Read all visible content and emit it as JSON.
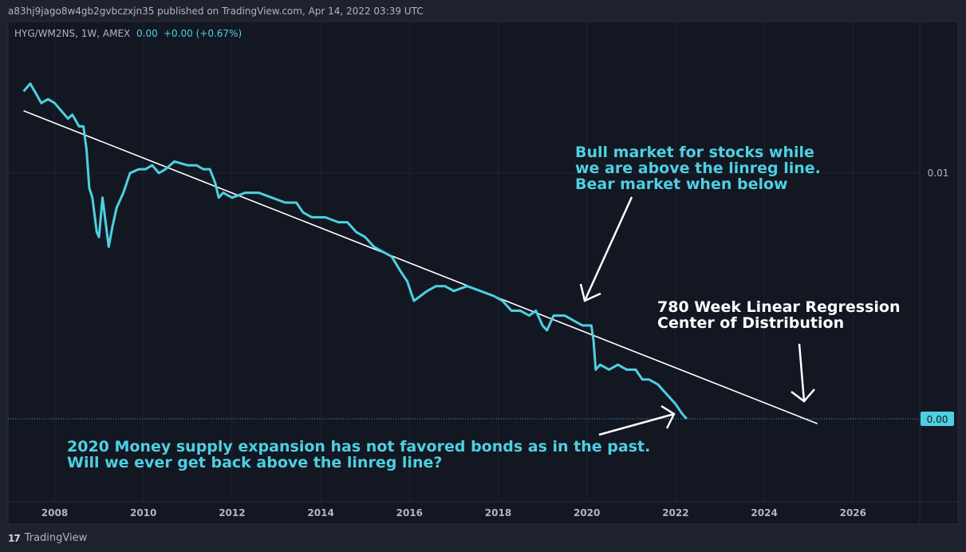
{
  "header": {
    "published": "a83hj9jago8w4gb2gvbczxjn35 published on TradingView.com, Apr 14, 2022 03:39 UTC"
  },
  "legend": {
    "symbol": "HYG/WM2NS, 1W, AMEX",
    "value": "0.00",
    "change": "+0.00 (+0.67%)"
  },
  "footer": {
    "brand": "TradingView",
    "logo": "17"
  },
  "colors": {
    "background": "#131722",
    "frame": "#1e222d",
    "series": "#4dd0e1",
    "regression": "#ffffff",
    "grid": "#1f2330",
    "price_tag": "#4dd0e1"
  },
  "annotations": {
    "bull_line1": "Bull market for stocks while",
    "bull_line2": "we are above the linreg line.",
    "bull_line3": "Bear market when below",
    "reg_line1": "780 Week Linear Regression",
    "reg_line2": "Center of Distribution",
    "money_line1": "2020 Money supply expansion has not favored bonds as in the past.",
    "money_line2": "Will we ever get back above the linreg line?"
  },
  "chart_data": {
    "type": "line",
    "x_ticks": [
      "2008",
      "2010",
      "2012",
      "2014",
      "2016",
      "2018",
      "2020",
      "2022",
      "2024",
      "2026"
    ],
    "y_ticks": [
      "0.01",
      "0.00"
    ],
    "last_value_label": "0.00",
    "xlim": [
      2007.0,
      2027.5
    ],
    "grid": true,
    "series": [
      {
        "values": [
          [
            2007.3,
            0.0121
          ],
          [
            2007.45,
            0.0123
          ],
          [
            2007.55,
            0.0121
          ],
          [
            2007.7,
            0.0118
          ],
          [
            2007.85,
            0.0119
          ],
          [
            2008.0,
            0.0118
          ],
          [
            2008.15,
            0.0116
          ],
          [
            2008.3,
            0.0114
          ],
          [
            2008.4,
            0.0115
          ],
          [
            2008.55,
            0.0112
          ],
          [
            2008.65,
            0.0112
          ],
          [
            2008.72,
            0.0106
          ],
          [
            2008.78,
            0.0097
          ],
          [
            2008.85,
            0.0095
          ],
          [
            2008.95,
            0.0088
          ],
          [
            2009.0,
            0.0087
          ],
          [
            2009.08,
            0.0095
          ],
          [
            2009.15,
            0.009
          ],
          [
            2009.22,
            0.0085
          ],
          [
            2009.3,
            0.0089
          ],
          [
            2009.4,
            0.0093
          ],
          [
            2009.55,
            0.0096
          ],
          [
            2009.7,
            0.01
          ],
          [
            2009.9,
            0.0101
          ],
          [
            2010.05,
            0.0101
          ],
          [
            2010.2,
            0.0102
          ],
          [
            2010.35,
            0.01
          ],
          [
            2010.5,
            0.0101
          ],
          [
            2010.7,
            0.0103
          ],
          [
            2011.0,
            0.0102
          ],
          [
            2011.2,
            0.0102
          ],
          [
            2011.35,
            0.0101
          ],
          [
            2011.5,
            0.0101
          ],
          [
            2011.62,
            0.0098
          ],
          [
            2011.7,
            0.0095
          ],
          [
            2011.8,
            0.0096
          ],
          [
            2012.0,
            0.0095
          ],
          [
            2012.3,
            0.0096
          ],
          [
            2012.6,
            0.0096
          ],
          [
            2012.9,
            0.0095
          ],
          [
            2013.2,
            0.0094
          ],
          [
            2013.45,
            0.0094
          ],
          [
            2013.6,
            0.0092
          ],
          [
            2013.8,
            0.0091
          ],
          [
            2014.1,
            0.0091
          ],
          [
            2014.4,
            0.009
          ],
          [
            2014.6,
            0.009
          ],
          [
            2014.8,
            0.0088
          ],
          [
            2015.0,
            0.0087
          ],
          [
            2015.2,
            0.0085
          ],
          [
            2015.4,
            0.0084
          ],
          [
            2015.6,
            0.0083
          ],
          [
            2015.8,
            0.008
          ],
          [
            2015.95,
            0.0078
          ],
          [
            2016.1,
            0.0074
          ],
          [
            2016.25,
            0.0075
          ],
          [
            2016.4,
            0.0076
          ],
          [
            2016.6,
            0.0077
          ],
          [
            2016.8,
            0.0077
          ],
          [
            2017.0,
            0.0076
          ],
          [
            2017.3,
            0.0077
          ],
          [
            2017.6,
            0.0076
          ],
          [
            2017.9,
            0.0075
          ],
          [
            2018.1,
            0.0074
          ],
          [
            2018.3,
            0.0072
          ],
          [
            2018.5,
            0.0072
          ],
          [
            2018.7,
            0.0071
          ],
          [
            2018.85,
            0.0072
          ],
          [
            2019.0,
            0.0069
          ],
          [
            2019.1,
            0.0068
          ],
          [
            2019.25,
            0.0071
          ],
          [
            2019.5,
            0.0071
          ],
          [
            2019.7,
            0.007
          ],
          [
            2019.9,
            0.0069
          ],
          [
            2020.1,
            0.0069
          ],
          [
            2020.15,
            0.0066
          ],
          [
            2020.2,
            0.006
          ],
          [
            2020.3,
            0.0061
          ],
          [
            2020.5,
            0.006
          ],
          [
            2020.7,
            0.0061
          ],
          [
            2020.9,
            0.006
          ],
          [
            2021.1,
            0.006
          ],
          [
            2021.25,
            0.0058
          ],
          [
            2021.4,
            0.0058
          ],
          [
            2021.6,
            0.0057
          ],
          [
            2021.8,
            0.0055
          ],
          [
            2022.0,
            0.0053
          ],
          [
            2022.15,
            0.0051
          ],
          [
            2022.25,
            0.005
          ]
        ]
      }
    ],
    "regression": [
      [
        2007.3,
        0.0116
      ],
      [
        2025.2,
        0.0049
      ]
    ]
  }
}
